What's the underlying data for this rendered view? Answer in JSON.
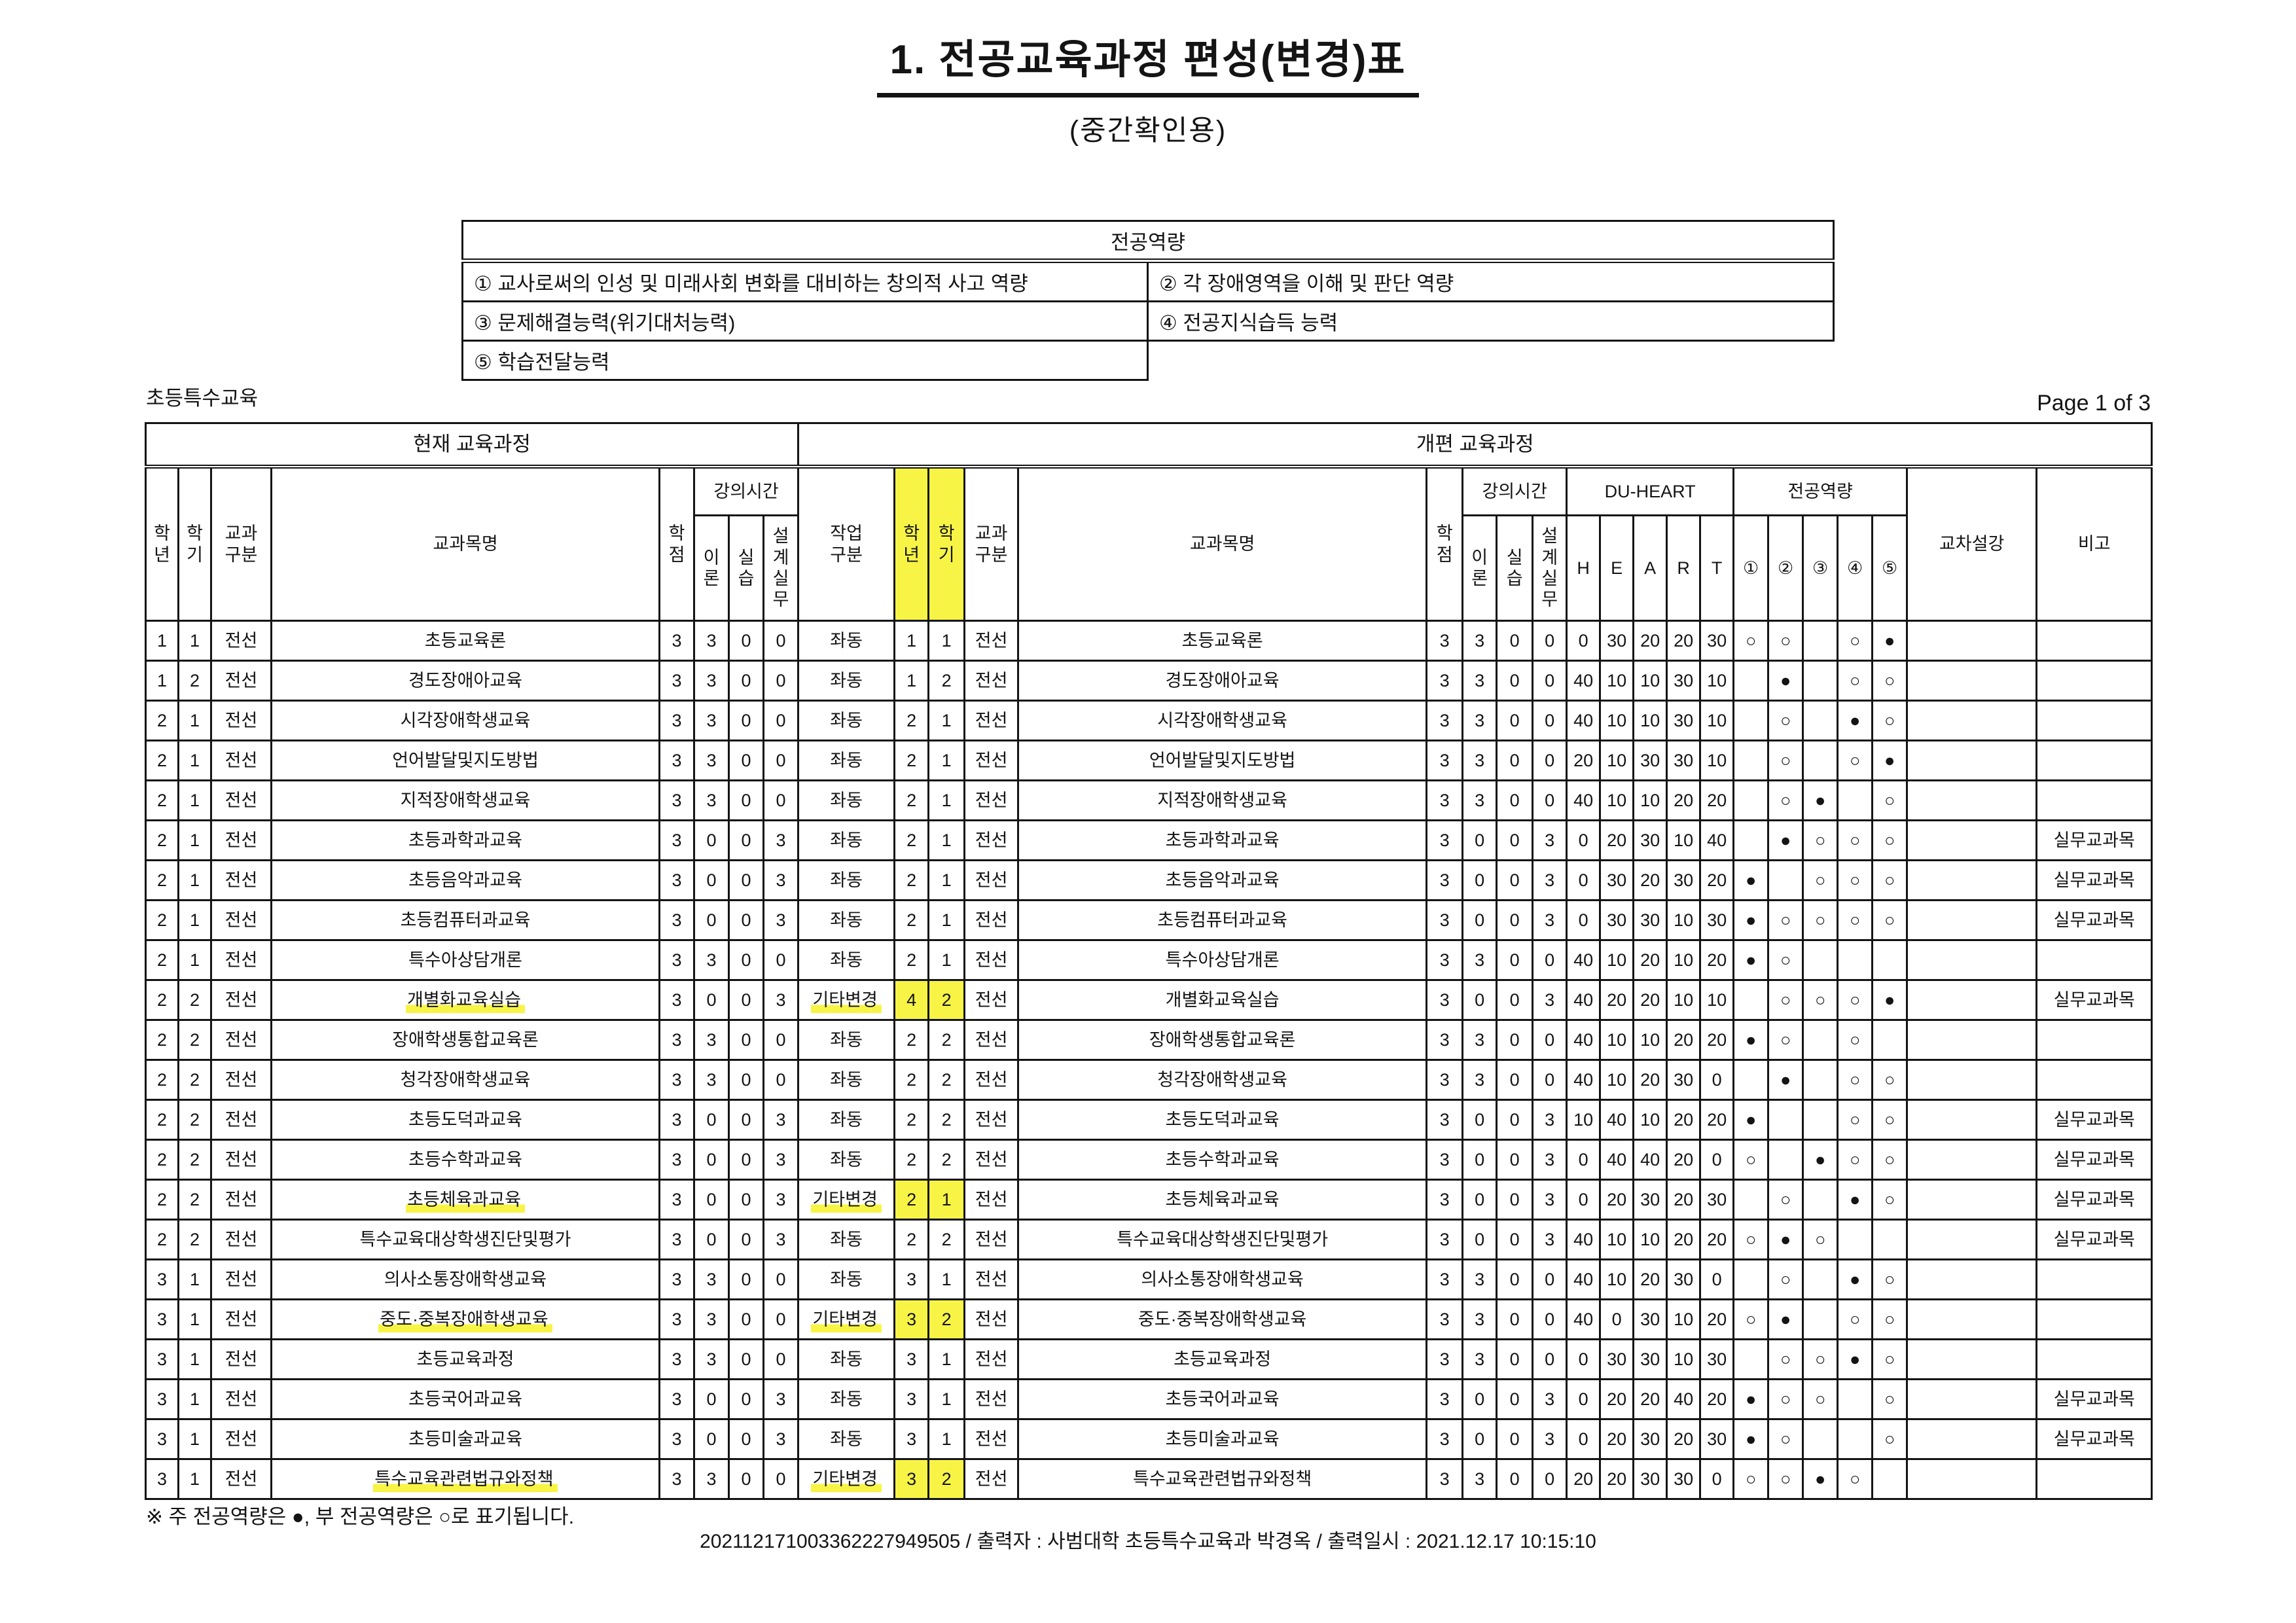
{
  "colors": {
    "highlight": "#f8f446"
  },
  "page": {
    "title": "1. 전공교육과정 편성(변경)표",
    "subtitle": "(중간확인용)",
    "section_label": "초등특수교육",
    "page_label": "Page 1 of 3",
    "footnote": "※ 주 전공역량은 ●, 부 전공역량은 ○로 표기됩니다.",
    "print_line": "202112171003362227949505 / 출력자 : 사범대학 초등특수교육과 박경옥 / 출력일시 : 2021.12.17 10:15:10"
  },
  "competency_box": {
    "title": "전공역량",
    "items": [
      "① 교사로써의 인성 및 미래사회 변화를 대비하는 창의적 사고 역량",
      "② 각 장애영역을 이해 및 판단 역량",
      "③ 문제해결능력(위기대처능력)",
      "④ 전공지식습득 능력",
      "⑤ 학습전달능력"
    ]
  },
  "table": {
    "group_headers": {
      "current": "현재 교육과정",
      "revised": "개편 교육과정"
    },
    "headers": {
      "grade": "학\n년",
      "semester": "학\n기",
      "division": "교과\n구분",
      "course": "교과목명",
      "credits": "학\n점",
      "hours": "강의시간",
      "theory": "이\n론",
      "practice": "실\n습",
      "design": "설\n계\n실\n무",
      "work": "작업\n구분",
      "duheart": "DU-HEART",
      "du": [
        "H",
        "E",
        "A",
        "R",
        "T"
      ],
      "competency": "전공역량",
      "comp_nums": [
        "①",
        "②",
        "③",
        "④",
        "⑤"
      ],
      "cross": "교차설강",
      "note": "비고"
    },
    "rows": [
      {
        "cur": {
          "yr": "1",
          "sem": "1",
          "div": "전선",
          "name": "초등교육론",
          "cr": "3",
          "th": "3",
          "pr": "0",
          "de": "0"
        },
        "rev": {
          "work": "좌동",
          "yr": "1",
          "sem": "1",
          "div": "전선",
          "name": "초등교육론",
          "cr": "3",
          "th": "3",
          "pr": "0",
          "de": "0"
        },
        "heart": [
          "0",
          "30",
          "20",
          "20",
          "30"
        ],
        "comp": [
          "open",
          "open",
          "",
          "open",
          "filled"
        ],
        "cross": "",
        "note": "",
        "hl": false
      },
      {
        "cur": {
          "yr": "1",
          "sem": "2",
          "div": "전선",
          "name": "경도장애아교육",
          "cr": "3",
          "th": "3",
          "pr": "0",
          "de": "0"
        },
        "rev": {
          "work": "좌동",
          "yr": "1",
          "sem": "2",
          "div": "전선",
          "name": "경도장애아교육",
          "cr": "3",
          "th": "3",
          "pr": "0",
          "de": "0"
        },
        "heart": [
          "40",
          "10",
          "10",
          "30",
          "10"
        ],
        "comp": [
          "",
          "filled",
          "",
          "open",
          "open"
        ],
        "cross": "",
        "note": "",
        "hl": false
      },
      {
        "cur": {
          "yr": "2",
          "sem": "1",
          "div": "전선",
          "name": "시각장애학생교육",
          "cr": "3",
          "th": "3",
          "pr": "0",
          "de": "0"
        },
        "rev": {
          "work": "좌동",
          "yr": "2",
          "sem": "1",
          "div": "전선",
          "name": "시각장애학생교육",
          "cr": "3",
          "th": "3",
          "pr": "0",
          "de": "0"
        },
        "heart": [
          "40",
          "10",
          "10",
          "30",
          "10"
        ],
        "comp": [
          "",
          "open",
          "",
          "filled",
          "open"
        ],
        "cross": "",
        "note": "",
        "hl": false
      },
      {
        "cur": {
          "yr": "2",
          "sem": "1",
          "div": "전선",
          "name": "언어발달및지도방법",
          "cr": "3",
          "th": "3",
          "pr": "0",
          "de": "0"
        },
        "rev": {
          "work": "좌동",
          "yr": "2",
          "sem": "1",
          "div": "전선",
          "name": "언어발달및지도방법",
          "cr": "3",
          "th": "3",
          "pr": "0",
          "de": "0"
        },
        "heart": [
          "20",
          "10",
          "30",
          "30",
          "10"
        ],
        "comp": [
          "",
          "open",
          "",
          "open",
          "filled"
        ],
        "cross": "",
        "note": "",
        "hl": false
      },
      {
        "cur": {
          "yr": "2",
          "sem": "1",
          "div": "전선",
          "name": "지적장애학생교육",
          "cr": "3",
          "th": "3",
          "pr": "0",
          "de": "0"
        },
        "rev": {
          "work": "좌동",
          "yr": "2",
          "sem": "1",
          "div": "전선",
          "name": "지적장애학생교육",
          "cr": "3",
          "th": "3",
          "pr": "0",
          "de": "0"
        },
        "heart": [
          "40",
          "10",
          "10",
          "20",
          "20"
        ],
        "comp": [
          "",
          "open",
          "filled",
          "",
          "open"
        ],
        "cross": "",
        "note": "",
        "hl": false
      },
      {
        "cur": {
          "yr": "2",
          "sem": "1",
          "div": "전선",
          "name": "초등과학과교육",
          "cr": "3",
          "th": "0",
          "pr": "0",
          "de": "3"
        },
        "rev": {
          "work": "좌동",
          "yr": "2",
          "sem": "1",
          "div": "전선",
          "name": "초등과학과교육",
          "cr": "3",
          "th": "0",
          "pr": "0",
          "de": "3"
        },
        "heart": [
          "0",
          "20",
          "30",
          "10",
          "40"
        ],
        "comp": [
          "",
          "filled",
          "open",
          "open",
          "open"
        ],
        "cross": "",
        "note": "실무교과목",
        "hl": false
      },
      {
        "cur": {
          "yr": "2",
          "sem": "1",
          "div": "전선",
          "name": "초등음악과교육",
          "cr": "3",
          "th": "0",
          "pr": "0",
          "de": "3"
        },
        "rev": {
          "work": "좌동",
          "yr": "2",
          "sem": "1",
          "div": "전선",
          "name": "초등음악과교육",
          "cr": "3",
          "th": "0",
          "pr": "0",
          "de": "3"
        },
        "heart": [
          "0",
          "30",
          "20",
          "30",
          "20"
        ],
        "comp": [
          "filled",
          "",
          "open",
          "open",
          "open"
        ],
        "cross": "",
        "note": "실무교과목",
        "hl": false
      },
      {
        "cur": {
          "yr": "2",
          "sem": "1",
          "div": "전선",
          "name": "초등컴퓨터과교육",
          "cr": "3",
          "th": "0",
          "pr": "0",
          "de": "3"
        },
        "rev": {
          "work": "좌동",
          "yr": "2",
          "sem": "1",
          "div": "전선",
          "name": "초등컴퓨터과교육",
          "cr": "3",
          "th": "0",
          "pr": "0",
          "de": "3"
        },
        "heart": [
          "0",
          "30",
          "30",
          "10",
          "30"
        ],
        "comp": [
          "filled",
          "open",
          "open",
          "open",
          "open"
        ],
        "cross": "",
        "note": "실무교과목",
        "hl": false
      },
      {
        "cur": {
          "yr": "2",
          "sem": "1",
          "div": "전선",
          "name": "특수아상담개론",
          "cr": "3",
          "th": "3",
          "pr": "0",
          "de": "0"
        },
        "rev": {
          "work": "좌동",
          "yr": "2",
          "sem": "1",
          "div": "전선",
          "name": "특수아상담개론",
          "cr": "3",
          "th": "3",
          "pr": "0",
          "de": "0"
        },
        "heart": [
          "40",
          "10",
          "20",
          "10",
          "20"
        ],
        "comp": [
          "filled",
          "open",
          "",
          "",
          ""
        ],
        "cross": "",
        "note": "",
        "hl": false
      },
      {
        "cur": {
          "yr": "2",
          "sem": "2",
          "div": "전선",
          "name": "개별화교육실습",
          "cr": "3",
          "th": "0",
          "pr": "0",
          "de": "3"
        },
        "rev": {
          "work": "기타변경",
          "yr": "4",
          "sem": "2",
          "div": "전선",
          "name": "개별화교육실습",
          "cr": "3",
          "th": "0",
          "pr": "0",
          "de": "3"
        },
        "heart": [
          "40",
          "20",
          "20",
          "10",
          "10"
        ],
        "comp": [
          "",
          "open",
          "open",
          "open",
          "filled"
        ],
        "cross": "",
        "note": "실무교과목",
        "hl": true
      },
      {
        "cur": {
          "yr": "2",
          "sem": "2",
          "div": "전선",
          "name": "장애학생통합교육론",
          "cr": "3",
          "th": "3",
          "pr": "0",
          "de": "0"
        },
        "rev": {
          "work": "좌동",
          "yr": "2",
          "sem": "2",
          "div": "전선",
          "name": "장애학생통합교육론",
          "cr": "3",
          "th": "3",
          "pr": "0",
          "de": "0"
        },
        "heart": [
          "40",
          "10",
          "10",
          "20",
          "20"
        ],
        "comp": [
          "filled",
          "open",
          "",
          "open",
          ""
        ],
        "cross": "",
        "note": "",
        "hl": false
      },
      {
        "cur": {
          "yr": "2",
          "sem": "2",
          "div": "전선",
          "name": "청각장애학생교육",
          "cr": "3",
          "th": "3",
          "pr": "0",
          "de": "0"
        },
        "rev": {
          "work": "좌동",
          "yr": "2",
          "sem": "2",
          "div": "전선",
          "name": "청각장애학생교육",
          "cr": "3",
          "th": "3",
          "pr": "0",
          "de": "0"
        },
        "heart": [
          "40",
          "10",
          "20",
          "30",
          "0"
        ],
        "comp": [
          "",
          "filled",
          "",
          "open",
          "open"
        ],
        "cross": "",
        "note": "",
        "hl": false
      },
      {
        "cur": {
          "yr": "2",
          "sem": "2",
          "div": "전선",
          "name": "초등도덕과교육",
          "cr": "3",
          "th": "0",
          "pr": "0",
          "de": "3"
        },
        "rev": {
          "work": "좌동",
          "yr": "2",
          "sem": "2",
          "div": "전선",
          "name": "초등도덕과교육",
          "cr": "3",
          "th": "0",
          "pr": "0",
          "de": "3"
        },
        "heart": [
          "10",
          "40",
          "10",
          "20",
          "20"
        ],
        "comp": [
          "filled",
          "",
          "",
          "open",
          "open"
        ],
        "cross": "",
        "note": "실무교과목",
        "hl": false
      },
      {
        "cur": {
          "yr": "2",
          "sem": "2",
          "div": "전선",
          "name": "초등수학과교육",
          "cr": "3",
          "th": "0",
          "pr": "0",
          "de": "3"
        },
        "rev": {
          "work": "좌동",
          "yr": "2",
          "sem": "2",
          "div": "전선",
          "name": "초등수학과교육",
          "cr": "3",
          "th": "0",
          "pr": "0",
          "de": "3"
        },
        "heart": [
          "0",
          "40",
          "40",
          "20",
          "0"
        ],
        "comp": [
          "open",
          "",
          "filled",
          "open",
          "open"
        ],
        "cross": "",
        "note": "실무교과목",
        "hl": false
      },
      {
        "cur": {
          "yr": "2",
          "sem": "2",
          "div": "전선",
          "name": "초등체육과교육",
          "cr": "3",
          "th": "0",
          "pr": "0",
          "de": "3"
        },
        "rev": {
          "work": "기타변경",
          "yr": "2",
          "sem": "1",
          "div": "전선",
          "name": "초등체육과교육",
          "cr": "3",
          "th": "0",
          "pr": "0",
          "de": "3"
        },
        "heart": [
          "0",
          "20",
          "30",
          "20",
          "30"
        ],
        "comp": [
          "",
          "open",
          "",
          "filled",
          "open"
        ],
        "cross": "",
        "note": "실무교과목",
        "hl": true
      },
      {
        "cur": {
          "yr": "2",
          "sem": "2",
          "div": "전선",
          "name": "특수교육대상학생진단및평가",
          "cr": "3",
          "th": "0",
          "pr": "0",
          "de": "3"
        },
        "rev": {
          "work": "좌동",
          "yr": "2",
          "sem": "2",
          "div": "전선",
          "name": "특수교육대상학생진단및평가",
          "cr": "3",
          "th": "0",
          "pr": "0",
          "de": "3"
        },
        "heart": [
          "40",
          "10",
          "10",
          "20",
          "20"
        ],
        "comp": [
          "open",
          "filled",
          "open",
          "",
          ""
        ],
        "cross": "",
        "note": "실무교과목",
        "hl": false
      },
      {
        "cur": {
          "yr": "3",
          "sem": "1",
          "div": "전선",
          "name": "의사소통장애학생교육",
          "cr": "3",
          "th": "3",
          "pr": "0",
          "de": "0"
        },
        "rev": {
          "work": "좌동",
          "yr": "3",
          "sem": "1",
          "div": "전선",
          "name": "의사소통장애학생교육",
          "cr": "3",
          "th": "3",
          "pr": "0",
          "de": "0"
        },
        "heart": [
          "40",
          "10",
          "20",
          "30",
          "0"
        ],
        "comp": [
          "",
          "open",
          "",
          "filled",
          "open"
        ],
        "cross": "",
        "note": "",
        "hl": false
      },
      {
        "cur": {
          "yr": "3",
          "sem": "1",
          "div": "전선",
          "name": "중도·중복장애학생교육",
          "cr": "3",
          "th": "3",
          "pr": "0",
          "de": "0"
        },
        "rev": {
          "work": "기타변경",
          "yr": "3",
          "sem": "2",
          "div": "전선",
          "name": "중도·중복장애학생교육",
          "cr": "3",
          "th": "3",
          "pr": "0",
          "de": "0"
        },
        "heart": [
          "40",
          "0",
          "30",
          "10",
          "20"
        ],
        "comp": [
          "open",
          "filled",
          "",
          "open",
          "open"
        ],
        "cross": "",
        "note": "",
        "hl": true
      },
      {
        "cur": {
          "yr": "3",
          "sem": "1",
          "div": "전선",
          "name": "초등교육과정",
          "cr": "3",
          "th": "3",
          "pr": "0",
          "de": "0"
        },
        "rev": {
          "work": "좌동",
          "yr": "3",
          "sem": "1",
          "div": "전선",
          "name": "초등교육과정",
          "cr": "3",
          "th": "3",
          "pr": "0",
          "de": "0"
        },
        "heart": [
          "0",
          "30",
          "30",
          "10",
          "30"
        ],
        "comp": [
          "",
          "open",
          "open",
          "filled",
          "open"
        ],
        "cross": "",
        "note": "",
        "hl": false
      },
      {
        "cur": {
          "yr": "3",
          "sem": "1",
          "div": "전선",
          "name": "초등국어과교육",
          "cr": "3",
          "th": "0",
          "pr": "0",
          "de": "3"
        },
        "rev": {
          "work": "좌동",
          "yr": "3",
          "sem": "1",
          "div": "전선",
          "name": "초등국어과교육",
          "cr": "3",
          "th": "0",
          "pr": "0",
          "de": "3"
        },
        "heart": [
          "0",
          "20",
          "20",
          "40",
          "20"
        ],
        "comp": [
          "filled",
          "open",
          "open",
          "",
          "open"
        ],
        "cross": "",
        "note": "실무교과목",
        "hl": false
      },
      {
        "cur": {
          "yr": "3",
          "sem": "1",
          "div": "전선",
          "name": "초등미술과교육",
          "cr": "3",
          "th": "0",
          "pr": "0",
          "de": "3"
        },
        "rev": {
          "work": "좌동",
          "yr": "3",
          "sem": "1",
          "div": "전선",
          "name": "초등미술과교육",
          "cr": "3",
          "th": "0",
          "pr": "0",
          "de": "3"
        },
        "heart": [
          "0",
          "20",
          "30",
          "20",
          "30"
        ],
        "comp": [
          "filled",
          "open",
          "",
          "",
          "open"
        ],
        "cross": "",
        "note": "실무교과목",
        "hl": false
      },
      {
        "cur": {
          "yr": "3",
          "sem": "1",
          "div": "전선",
          "name": "특수교육관련법규와정책",
          "cr": "3",
          "th": "3",
          "pr": "0",
          "de": "0"
        },
        "rev": {
          "work": "기타변경",
          "yr": "3",
          "sem": "2",
          "div": "전선",
          "name": "특수교육관련법규와정책",
          "cr": "3",
          "th": "3",
          "pr": "0",
          "de": "0"
        },
        "heart": [
          "20",
          "20",
          "30",
          "30",
          "0"
        ],
        "comp": [
          "open",
          "open",
          "filled",
          "open",
          ""
        ],
        "cross": "",
        "note": "",
        "hl": true
      }
    ]
  }
}
